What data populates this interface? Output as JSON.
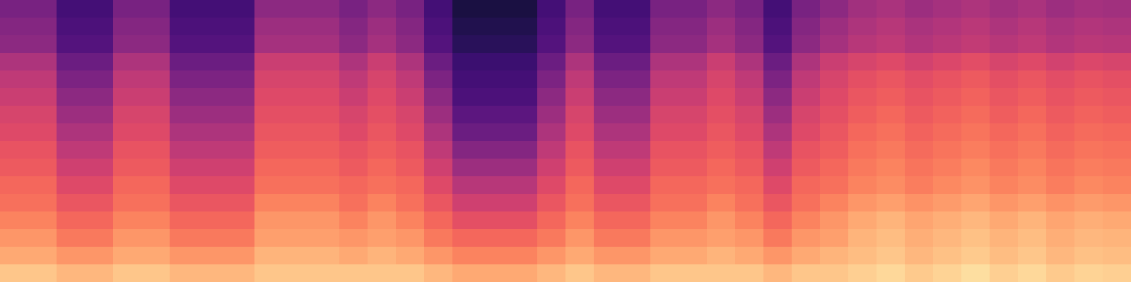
{
  "chart_data": {
    "type": "heatmap",
    "color": "magma",
    "tick_labels": false,
    "zlim": [
      0,
      100
    ],
    "cells": [
      [
        35,
        35,
        22,
        22,
        35,
        35,
        22,
        22,
        22,
        40,
        40,
        40,
        35,
        40,
        35,
        22,
        12,
        12,
        12,
        22,
        35,
        22,
        22,
        35,
        35,
        40,
        35,
        22,
        35,
        40,
        45,
        47,
        44,
        46,
        48,
        45,
        47,
        44,
        46,
        45
      ],
      [
        38,
        38,
        24,
        24,
        38,
        38,
        24,
        24,
        24,
        44,
        44,
        44,
        38,
        44,
        38,
        24,
        14,
        14,
        14,
        24,
        38,
        24,
        24,
        38,
        38,
        44,
        38,
        24,
        38,
        44,
        48,
        50,
        47,
        49,
        51,
        48,
        50,
        47,
        49,
        48
      ],
      [
        40,
        40,
        26,
        26,
        40,
        40,
        26,
        26,
        26,
        46,
        46,
        46,
        40,
        46,
        40,
        26,
        16,
        16,
        16,
        26,
        40,
        26,
        26,
        40,
        40,
        46,
        40,
        26,
        40,
        46,
        50,
        52,
        49,
        51,
        53,
        50,
        52,
        49,
        51,
        50
      ],
      [
        48,
        48,
        32,
        32,
        48,
        48,
        32,
        32,
        32,
        55,
        55,
        55,
        48,
        55,
        48,
        32,
        20,
        20,
        20,
        32,
        48,
        32,
        32,
        48,
        48,
        55,
        48,
        32,
        48,
        55,
        58,
        60,
        57,
        59,
        61,
        58,
        60,
        57,
        59,
        58
      ],
      [
        52,
        52,
        36,
        36,
        52,
        52,
        36,
        36,
        36,
        58,
        58,
        58,
        52,
        58,
        52,
        36,
        22,
        22,
        22,
        36,
        52,
        36,
        36,
        52,
        52,
        58,
        52,
        36,
        52,
        58,
        62,
        64,
        61,
        63,
        65,
        62,
        64,
        61,
        63,
        62
      ],
      [
        55,
        55,
        40,
        40,
        55,
        55,
        40,
        40,
        40,
        60,
        60,
        60,
        55,
        60,
        55,
        40,
        24,
        24,
        24,
        40,
        55,
        40,
        40,
        55,
        55,
        60,
        55,
        40,
        55,
        60,
        64,
        66,
        63,
        65,
        67,
        64,
        66,
        63,
        65,
        64
      ],
      [
        58,
        58,
        44,
        44,
        58,
        58,
        44,
        44,
        44,
        62,
        62,
        62,
        58,
        62,
        58,
        44,
        28,
        28,
        28,
        44,
        58,
        44,
        44,
        58,
        58,
        62,
        58,
        44,
        58,
        62,
        66,
        68,
        65,
        67,
        69,
        66,
        68,
        65,
        67,
        66
      ],
      [
        60,
        60,
        48,
        48,
        60,
        60,
        48,
        48,
        48,
        64,
        64,
        64,
        60,
        64,
        60,
        48,
        32,
        32,
        32,
        48,
        60,
        48,
        48,
        60,
        60,
        64,
        60,
        48,
        60,
        64,
        68,
        70,
        67,
        69,
        71,
        68,
        70,
        67,
        69,
        68
      ],
      [
        63,
        63,
        52,
        52,
        63,
        63,
        52,
        52,
        52,
        66,
        66,
        66,
        63,
        66,
        63,
        52,
        38,
        38,
        38,
        52,
        63,
        52,
        52,
        63,
        63,
        66,
        63,
        52,
        63,
        66,
        70,
        72,
        69,
        71,
        73,
        70,
        72,
        69,
        71,
        70
      ],
      [
        65,
        65,
        56,
        56,
        65,
        65,
        56,
        56,
        56,
        68,
        68,
        68,
        65,
        68,
        65,
        56,
        44,
        44,
        44,
        56,
        65,
        56,
        56,
        65,
        65,
        68,
        65,
        56,
        65,
        68,
        72,
        74,
        71,
        73,
        75,
        72,
        74,
        71,
        73,
        72
      ],
      [
        68,
        68,
        60,
        60,
        68,
        68,
        60,
        60,
        60,
        70,
        70,
        70,
        68,
        70,
        68,
        60,
        50,
        50,
        50,
        60,
        68,
        60,
        60,
        68,
        68,
        70,
        68,
        60,
        68,
        70,
        74,
        76,
        73,
        75,
        77,
        74,
        76,
        73,
        75,
        74
      ],
      [
        70,
        70,
        64,
        64,
        70,
        70,
        64,
        64,
        64,
        74,
        74,
        74,
        70,
        74,
        70,
        64,
        56,
        56,
        56,
        64,
        70,
        64,
        64,
        70,
        70,
        74,
        70,
        64,
        70,
        74,
        78,
        80,
        77,
        79,
        81,
        78,
        80,
        77,
        79,
        78
      ],
      [
        74,
        74,
        68,
        68,
        74,
        74,
        68,
        68,
        68,
        78,
        78,
        78,
        74,
        78,
        74,
        68,
        62,
        62,
        62,
        68,
        74,
        68,
        68,
        74,
        74,
        78,
        74,
        68,
        74,
        78,
        82,
        84,
        81,
        83,
        85,
        82,
        84,
        81,
        83,
        82
      ],
      [
        78,
        78,
        72,
        72,
        78,
        78,
        72,
        72,
        72,
        80,
        80,
        80,
        78,
        80,
        78,
        72,
        68,
        68,
        68,
        72,
        78,
        72,
        72,
        78,
        78,
        80,
        78,
        72,
        78,
        80,
        84,
        86,
        83,
        85,
        87,
        84,
        86,
        83,
        85,
        84
      ],
      [
        82,
        82,
        78,
        78,
        82,
        82,
        78,
        78,
        78,
        84,
        84,
        84,
        82,
        84,
        82,
        78,
        74,
        74,
        74,
        78,
        82,
        78,
        78,
        82,
        82,
        84,
        82,
        78,
        82,
        84,
        86,
        88,
        85,
        87,
        89,
        86,
        88,
        85,
        87,
        86
      ],
      [
        88,
        88,
        85,
        85,
        88,
        88,
        85,
        85,
        85,
        88,
        88,
        88,
        88,
        88,
        88,
        85,
        82,
        82,
        82,
        85,
        88,
        85,
        85,
        88,
        88,
        88,
        88,
        85,
        88,
        88,
        90,
        92,
        89,
        91,
        93,
        90,
        92,
        89,
        91,
        90
      ]
    ]
  }
}
